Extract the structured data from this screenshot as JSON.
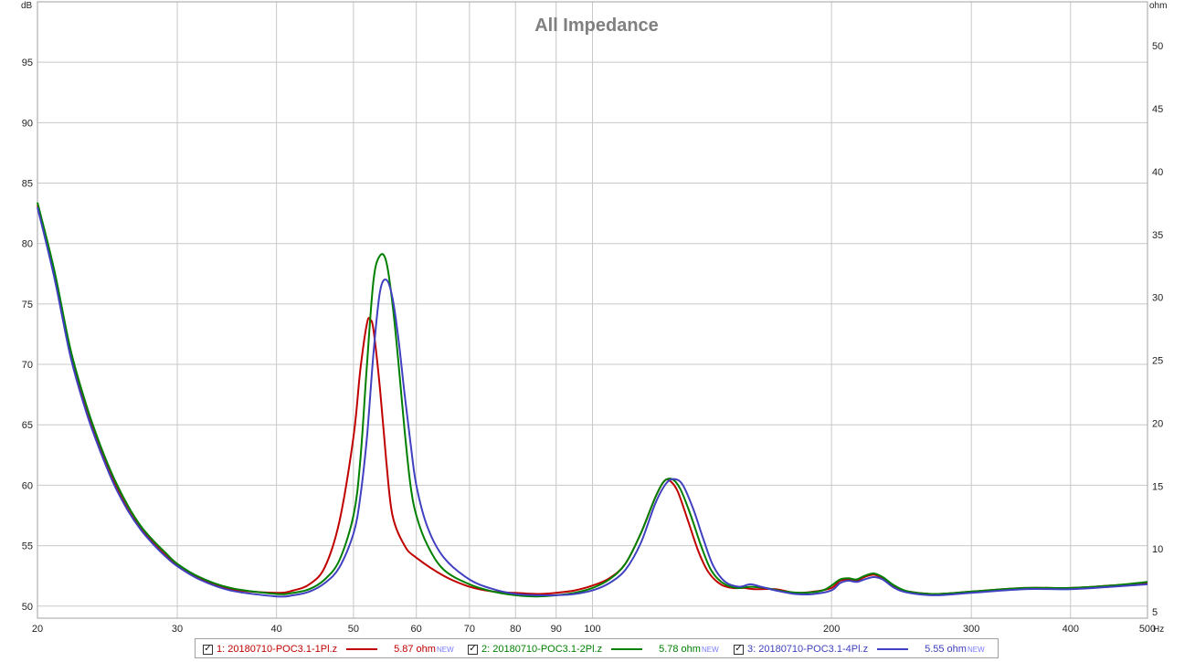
{
  "chart_data": {
    "type": "line",
    "title": "All Impedance",
    "x_unit": "Hz",
    "y_left_unit": "dB",
    "y_right_unit": "ohm",
    "xscale": "log",
    "xlim": [
      20,
      500
    ],
    "ylim_left": [
      49,
      100
    ],
    "ylim_right": [
      4.5,
      53.5
    ],
    "grid": true,
    "x_ticks": [
      20,
      30,
      40,
      50,
      60,
      70,
      80,
      90,
      100,
      200,
      300,
      400,
      500
    ],
    "x_tick_labels": [
      "20",
      "30",
      "40",
      "50",
      "60",
      "70",
      "80",
      "90",
      "100",
      "200",
      "300",
      "400",
      "500"
    ],
    "y_left_ticks": [
      50,
      55,
      60,
      65,
      70,
      75,
      80,
      85,
      90,
      95
    ],
    "y_left_tick_labels": [
      "50",
      "55",
      "60",
      "65",
      "70",
      "75",
      "80",
      "85",
      "90",
      "95"
    ],
    "y_right_ticks": [
      5,
      10,
      15,
      20,
      25,
      30,
      35,
      40,
      45,
      50
    ],
    "y_right_tick_labels": [
      "5",
      "10",
      "15",
      "20",
      "25",
      "30",
      "35",
      "40",
      "45",
      "50"
    ],
    "legend_position": "bottom",
    "series": [
      {
        "name": "1: 20180710-POC3.1-1Pl.z",
        "value_label": "5.87 ohm",
        "badge": "NEW",
        "color": "#c00000",
        "points": [
          [
            20,
            83.2
          ],
          [
            21,
            77.5
          ],
          [
            22,
            71.0
          ],
          [
            23,
            66.5
          ],
          [
            24,
            63.0
          ],
          [
            25,
            60.2
          ],
          [
            26,
            58.0
          ],
          [
            27,
            56.4
          ],
          [
            28,
            55.2
          ],
          [
            29,
            54.2
          ],
          [
            30,
            53.4
          ],
          [
            32,
            52.3
          ],
          [
            35,
            51.4
          ],
          [
            40,
            51.1
          ],
          [
            42,
            51.3
          ],
          [
            44,
            51.8
          ],
          [
            46,
            53.2
          ],
          [
            48,
            57.0
          ],
          [
            50,
            64.0
          ],
          [
            51,
            69.5
          ],
          [
            52,
            73.4
          ],
          [
            52.5,
            73.7
          ],
          [
            53,
            72.8
          ],
          [
            54,
            68.0
          ],
          [
            55,
            62.0
          ],
          [
            56,
            57.5
          ],
          [
            58,
            55.0
          ],
          [
            60,
            54.0
          ],
          [
            65,
            52.5
          ],
          [
            70,
            51.6
          ],
          [
            75,
            51.2
          ],
          [
            80,
            51.1
          ],
          [
            85,
            51.0
          ],
          [
            90,
            51.1
          ],
          [
            95,
            51.3
          ],
          [
            100,
            51.7
          ],
          [
            105,
            52.3
          ],
          [
            110,
            53.5
          ],
          [
            115,
            56.0
          ],
          [
            120,
            59.0
          ],
          [
            123,
            60.3
          ],
          [
            125,
            60.4
          ],
          [
            128,
            59.5
          ],
          [
            132,
            57.0
          ],
          [
            136,
            54.5
          ],
          [
            140,
            52.8
          ],
          [
            145,
            51.8
          ],
          [
            150,
            51.5
          ],
          [
            155,
            51.5
          ],
          [
            160,
            51.4
          ],
          [
            170,
            51.4
          ],
          [
            180,
            51.1
          ],
          [
            190,
            51.2
          ],
          [
            200,
            51.5
          ],
          [
            205,
            52.1
          ],
          [
            210,
            52.2
          ],
          [
            215,
            52.1
          ],
          [
            220,
            52.4
          ],
          [
            226,
            52.6
          ],
          [
            232,
            52.3
          ],
          [
            240,
            51.6
          ],
          [
            250,
            51.2
          ],
          [
            270,
            51.0
          ],
          [
            300,
            51.2
          ],
          [
            350,
            51.5
          ],
          [
            400,
            51.5
          ],
          [
            450,
            51.7
          ],
          [
            500,
            51.9
          ]
        ]
      },
      {
        "name": "2: 20180710-POC3.1-2Pl.z",
        "value_label": "5.78 ohm",
        "badge": "NEW",
        "color": "#008000",
        "points": [
          [
            20,
            83.4
          ],
          [
            21,
            77.8
          ],
          [
            22,
            71.3
          ],
          [
            23,
            66.8
          ],
          [
            24,
            63.3
          ],
          [
            25,
            60.5
          ],
          [
            26,
            58.3
          ],
          [
            27,
            56.6
          ],
          [
            28,
            55.4
          ],
          [
            29,
            54.4
          ],
          [
            30,
            53.5
          ],
          [
            32,
            52.4
          ],
          [
            35,
            51.5
          ],
          [
            40,
            51.0
          ],
          [
            42,
            51.1
          ],
          [
            44,
            51.4
          ],
          [
            46,
            52.2
          ],
          [
            48,
            53.8
          ],
          [
            50,
            57.5
          ],
          [
            51,
            62.0
          ],
          [
            52,
            70.0
          ],
          [
            53,
            77.0
          ],
          [
            54,
            79.0
          ],
          [
            55,
            78.5
          ],
          [
            56,
            75.0
          ],
          [
            57,
            70.0
          ],
          [
            58,
            64.5
          ],
          [
            59,
            60.0
          ],
          [
            60,
            57.5
          ],
          [
            62,
            55.0
          ],
          [
            65,
            53.0
          ],
          [
            70,
            51.8
          ],
          [
            75,
            51.2
          ],
          [
            80,
            50.9
          ],
          [
            85,
            50.8
          ],
          [
            90,
            50.9
          ],
          [
            95,
            51.1
          ],
          [
            100,
            51.5
          ],
          [
            105,
            52.2
          ],
          [
            110,
            53.5
          ],
          [
            115,
            56.0
          ],
          [
            120,
            59.0
          ],
          [
            123,
            60.3
          ],
          [
            126,
            60.5
          ],
          [
            129,
            59.7
          ],
          [
            133,
            57.5
          ],
          [
            137,
            55.0
          ],
          [
            141,
            53.0
          ],
          [
            146,
            51.9
          ],
          [
            152,
            51.5
          ],
          [
            158,
            51.6
          ],
          [
            165,
            51.5
          ],
          [
            175,
            51.2
          ],
          [
            185,
            51.1
          ],
          [
            195,
            51.3
          ],
          [
            200,
            51.7
          ],
          [
            205,
            52.2
          ],
          [
            210,
            52.3
          ],
          [
            215,
            52.2
          ],
          [
            220,
            52.5
          ],
          [
            226,
            52.7
          ],
          [
            232,
            52.4
          ],
          [
            240,
            51.7
          ],
          [
            250,
            51.2
          ],
          [
            270,
            51.0
          ],
          [
            300,
            51.2
          ],
          [
            350,
            51.5
          ],
          [
            400,
            51.5
          ],
          [
            450,
            51.7
          ],
          [
            500,
            52.0
          ]
        ]
      },
      {
        "name": "3: 20180710-POC3.1-4Pl.z",
        "value_label": "5.55 ohm",
        "badge": "NEW",
        "color": "#4040c0",
        "points": [
          [
            20,
            83.0
          ],
          [
            21,
            77.2
          ],
          [
            22,
            70.7
          ],
          [
            23,
            66.2
          ],
          [
            24,
            62.8
          ],
          [
            25,
            60.0
          ],
          [
            26,
            57.9
          ],
          [
            27,
            56.3
          ],
          [
            28,
            55.1
          ],
          [
            29,
            54.1
          ],
          [
            30,
            53.3
          ],
          [
            32,
            52.2
          ],
          [
            35,
            51.3
          ],
          [
            40,
            50.8
          ],
          [
            42,
            50.9
          ],
          [
            44,
            51.2
          ],
          [
            46,
            51.9
          ],
          [
            48,
            53.2
          ],
          [
            50,
            56.0
          ],
          [
            51,
            59.0
          ],
          [
            52,
            64.0
          ],
          [
            53,
            71.0
          ],
          [
            54,
            76.0
          ],
          [
            55,
            77.0
          ],
          [
            56,
            75.5
          ],
          [
            57,
            72.0
          ],
          [
            58,
            67.5
          ],
          [
            59,
            63.5
          ],
          [
            60,
            60.0
          ],
          [
            62,
            56.5
          ],
          [
            65,
            54.0
          ],
          [
            70,
            52.2
          ],
          [
            75,
            51.4
          ],
          [
            80,
            51.0
          ],
          [
            85,
            50.9
          ],
          [
            90,
            50.9
          ],
          [
            95,
            51.0
          ],
          [
            100,
            51.3
          ],
          [
            105,
            51.9
          ],
          [
            110,
            53.0
          ],
          [
            115,
            55.2
          ],
          [
            120,
            58.5
          ],
          [
            124,
            60.2
          ],
          [
            127,
            60.5
          ],
          [
            130,
            60.0
          ],
          [
            134,
            58.0
          ],
          [
            138,
            55.5
          ],
          [
            142,
            53.3
          ],
          [
            147,
            52.0
          ],
          [
            153,
            51.6
          ],
          [
            158,
            51.8
          ],
          [
            163,
            51.6
          ],
          [
            170,
            51.3
          ],
          [
            180,
            51.0
          ],
          [
            190,
            51.0
          ],
          [
            200,
            51.3
          ],
          [
            205,
            51.9
          ],
          [
            210,
            52.1
          ],
          [
            215,
            52.0
          ],
          [
            220,
            52.2
          ],
          [
            226,
            52.4
          ],
          [
            232,
            52.2
          ],
          [
            240,
            51.5
          ],
          [
            250,
            51.1
          ],
          [
            270,
            50.9
          ],
          [
            300,
            51.1
          ],
          [
            350,
            51.4
          ],
          [
            400,
            51.4
          ],
          [
            450,
            51.6
          ],
          [
            500,
            51.8
          ]
        ]
      }
    ]
  },
  "legend": {
    "checkbox_symbol": "✓"
  }
}
